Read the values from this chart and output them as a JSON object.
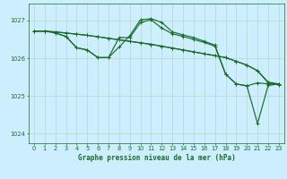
{
  "title": "Graphe pression niveau de la mer (hPa)",
  "background_color": "#cceeff",
  "grid_color": "#b8ddd0",
  "line_color": "#1a6b2a",
  "xlim": [
    -0.5,
    23.5
  ],
  "ylim": [
    1023.75,
    1027.45
  ],
  "yticks": [
    1024,
    1025,
    1026,
    1027
  ],
  "xticks": [
    0,
    1,
    2,
    3,
    4,
    5,
    6,
    7,
    8,
    9,
    10,
    11,
    12,
    13,
    14,
    15,
    16,
    17,
    18,
    19,
    20,
    21,
    22,
    23
  ],
  "s1_x": [
    0,
    1,
    2,
    3,
    4,
    5,
    6,
    7,
    8,
    9,
    10,
    11,
    12,
    13,
    14,
    15,
    16,
    17,
    18,
    19,
    20,
    21,
    22,
    23
  ],
  "s1_y": [
    1026.72,
    1026.72,
    1026.7,
    1026.67,
    1026.64,
    1026.61,
    1026.57,
    1026.53,
    1026.49,
    1026.45,
    1026.41,
    1026.37,
    1026.32,
    1026.27,
    1026.22,
    1026.17,
    1026.12,
    1026.07,
    1026.02,
    1025.92,
    1025.82,
    1025.67,
    1025.37,
    1025.32
  ],
  "s2_x": [
    0,
    1,
    2,
    3,
    4,
    5,
    6,
    7,
    8,
    9,
    10,
    11,
    12,
    13,
    14,
    15,
    16,
    17,
    18,
    19,
    20,
    21,
    22,
    23
  ],
  "s2_y": [
    1026.72,
    1026.72,
    1026.7,
    1026.67,
    1026.64,
    1026.61,
    1026.57,
    1026.53,
    1026.49,
    1026.45,
    1026.41,
    1026.37,
    1026.32,
    1026.27,
    1026.22,
    1026.17,
    1026.12,
    1026.07,
    1026.02,
    1025.92,
    1025.82,
    1025.67,
    1025.35,
    1025.3
  ],
  "s3_x": [
    0,
    1,
    2,
    3,
    4,
    5,
    6,
    7,
    8,
    9,
    10,
    11,
    12,
    13,
    14,
    15,
    16,
    17,
    18,
    19,
    20,
    21,
    22,
    23
  ],
  "s3_y": [
    1026.72,
    1026.72,
    1026.67,
    1026.58,
    1026.28,
    1026.22,
    1026.02,
    1026.02,
    1026.3,
    1026.6,
    1027.02,
    1027.05,
    1026.95,
    1026.7,
    1026.62,
    1026.55,
    1026.45,
    1026.35,
    1025.58,
    1025.32,
    1025.27,
    1024.27,
    1025.28,
    1025.32
  ],
  "s4_x": [
    2,
    3,
    4,
    5,
    6,
    7,
    8,
    9,
    10,
    11,
    12,
    13,
    14,
    15,
    16,
    17,
    18,
    19,
    20,
    21,
    22,
    23
  ],
  "s4_y": [
    1026.67,
    1026.58,
    1026.28,
    1026.22,
    1026.02,
    1026.02,
    1026.55,
    1026.55,
    1026.95,
    1027.02,
    1026.8,
    1026.65,
    1026.58,
    1026.5,
    1026.42,
    1026.32,
    1025.58,
    1025.32,
    1025.27,
    1025.35,
    1025.32,
    1025.32
  ]
}
